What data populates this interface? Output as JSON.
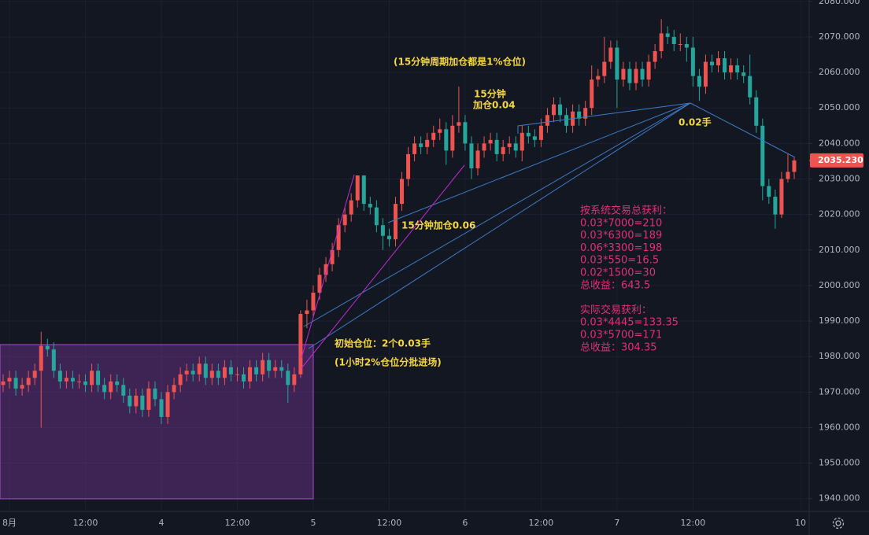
{
  "chart_data": {
    "type": "candlestick",
    "up_color": "#ef5350",
    "down_color": "#26a69a",
    "grid": true,
    "ylim": [
      1939.5,
      2080.4
    ],
    "yticks": [
      {
        "value": 1940,
        "label": "1940.000"
      },
      {
        "value": 1950,
        "label": "1950.000"
      },
      {
        "value": 1960,
        "label": "1960.000"
      },
      {
        "value": 1970,
        "label": "1970.000"
      },
      {
        "value": 1980,
        "label": "1980.000"
      },
      {
        "value": 1990,
        "label": "1990.000"
      },
      {
        "value": 2000,
        "label": "2000.000"
      },
      {
        "value": 2010,
        "label": "2010.000"
      },
      {
        "value": 2020,
        "label": "2020.000"
      },
      {
        "value": 2030,
        "label": "2030.000"
      },
      {
        "value": 2040,
        "label": "2040.000"
      },
      {
        "value": 2050,
        "label": "2050.000"
      },
      {
        "value": 2060,
        "label": "2060.000"
      },
      {
        "value": 2070,
        "label": "2070.000"
      },
      {
        "value": 2080,
        "label": "2080.000"
      }
    ],
    "last_price": {
      "value": 2035.23,
      "label": "2035.230"
    },
    "categories": [
      null,
      "8月",
      null,
      null,
      null,
      null,
      null,
      null,
      null,
      null,
      null,
      null,
      null,
      "12:00",
      null,
      null,
      null,
      null,
      null,
      null,
      null,
      null,
      null,
      null,
      null,
      "4",
      null,
      null,
      null,
      null,
      null,
      null,
      null,
      null,
      null,
      null,
      null,
      "12:00",
      null,
      null,
      null,
      null,
      null,
      null,
      null,
      null,
      null,
      null,
      null,
      "5",
      null,
      null,
      null,
      null,
      null,
      null,
      null,
      null,
      null,
      null,
      null,
      "12:00",
      null,
      null,
      null,
      null,
      null,
      null,
      null,
      null,
      null,
      null,
      null,
      "6",
      null,
      null,
      null,
      null,
      null,
      null,
      null,
      null,
      null,
      null,
      null,
      "12:00",
      null,
      null,
      null,
      null,
      null,
      null,
      null,
      null,
      null,
      null,
      null,
      "7",
      null,
      null,
      null,
      null,
      null,
      null,
      null,
      null,
      null,
      null,
      null,
      "12:00",
      null,
      null,
      null,
      null,
      null,
      null,
      null,
      null,
      null,
      null,
      null,
      null,
      null,
      null,
      null,
      null,
      "10"
    ],
    "ohlc": [
      [
        1972,
        1975,
        1970,
        1973
      ],
      [
        1973,
        1976,
        1971,
        1974
      ],
      [
        1974,
        1976,
        1969,
        1971
      ],
      [
        1971,
        1974,
        1969,
        1972
      ],
      [
        1972,
        1976,
        1970,
        1974
      ],
      [
        1974,
        1978,
        1972,
        1976
      ],
      [
        1976,
        1987,
        1960,
        1983
      ],
      [
        1983,
        1985,
        1980,
        1982
      ],
      [
        1982,
        1984,
        1974,
        1976
      ],
      [
        1976,
        1978,
        1971,
        1973
      ],
      [
        1973,
        1976,
        1971,
        1974
      ],
      [
        1974,
        1976,
        1971,
        1973
      ],
      [
        1973,
        1975,
        1971,
        1973
      ],
      [
        1973,
        1975,
        1970,
        1972
      ],
      [
        1972,
        1978,
        1970,
        1976
      ],
      [
        1976,
        1978,
        1970,
        1972
      ],
      [
        1972,
        1974,
        1968,
        1970
      ],
      [
        1970,
        1975,
        1968,
        1973
      ],
      [
        1973,
        1975,
        1970,
        1972
      ],
      [
        1972,
        1974,
        1967,
        1969
      ],
      [
        1969,
        1971,
        1964,
        1966
      ],
      [
        1966,
        1971,
        1964,
        1969
      ],
      [
        1969,
        1971,
        1963,
        1965
      ],
      [
        1965,
        1973,
        1963,
        1971
      ],
      [
        1971,
        1973,
        1966,
        1968
      ],
      [
        1968,
        1970,
        1961,
        1963
      ],
      [
        1963,
        1972,
        1961,
        1970
      ],
      [
        1970,
        1974,
        1968,
        1972
      ],
      [
        1972,
        1977,
        1970,
        1975
      ],
      [
        1975,
        1978,
        1973,
        1976
      ],
      [
        1976,
        1978,
        1973,
        1975
      ],
      [
        1975,
        1980,
        1973,
        1978
      ],
      [
        1978,
        1980,
        1972,
        1974
      ],
      [
        1974,
        1978,
        1972,
        1976
      ],
      [
        1976,
        1978,
        1972,
        1974
      ],
      [
        1974,
        1979,
        1972,
        1977
      ],
      [
        1977,
        1979,
        1973,
        1975
      ],
      [
        1975,
        1977,
        1973,
        1975
      ],
      [
        1975,
        1977,
        1971,
        1973
      ],
      [
        1973,
        1979,
        1971,
        1977
      ],
      [
        1977,
        1979,
        1973,
        1975
      ],
      [
        1975,
        1981,
        1973,
        1979
      ],
      [
        1979,
        1981,
        1974,
        1976
      ],
      [
        1976,
        1979,
        1974,
        1977
      ],
      [
        1977,
        1979,
        1974,
        1976
      ],
      [
        1976,
        1978,
        1967,
        1972
      ],
      [
        1972,
        1977,
        1970,
        1975
      ],
      [
        1975,
        1993,
        1974,
        1992
      ],
      [
        1992,
        1996,
        1988,
        1993
      ],
      [
        1993,
        2000,
        1991,
        1998
      ],
      [
        1998,
        2005,
        1996,
        2003
      ],
      [
        2003,
        2008,
        2001,
        2006
      ],
      [
        2006,
        2012,
        2004,
        2010
      ],
      [
        2010,
        2019,
        2008,
        2017
      ],
      [
        2017,
        2022,
        2015,
        2020
      ],
      [
        2020,
        2026,
        2018,
        2024
      ],
      [
        2024,
        2031,
        2022,
        2031
      ],
      [
        2031,
        2031,
        2021,
        2023
      ],
      [
        2023,
        2025,
        2020,
        2022
      ],
      [
        2022,
        2024,
        2015,
        2017
      ],
      [
        2017,
        2019,
        2010,
        2014
      ],
      [
        2014,
        2016,
        2011,
        2013
      ],
      [
        2013,
        2025,
        2011,
        2023
      ],
      [
        2023,
        2032,
        2021,
        2030
      ],
      [
        2030,
        2039,
        2028,
        2037
      ],
      [
        2037,
        2042,
        2035,
        2040
      ],
      [
        2040,
        2042,
        2037,
        2039
      ],
      [
        2039,
        2043,
        2037,
        2041
      ],
      [
        2041,
        2045,
        2039,
        2043
      ],
      [
        2043,
        2047,
        2041,
        2044
      ],
      [
        2044,
        2046,
        2034,
        2038
      ],
      [
        2038,
        2048,
        2036,
        2045
      ],
      [
        2045,
        2056,
        2043,
        2046
      ],
      [
        2046,
        2048,
        2038,
        2040
      ],
      [
        2040,
        2042,
        2030,
        2033
      ],
      [
        2033,
        2040,
        2031,
        2038
      ],
      [
        2038,
        2042,
        2036,
        2040
      ],
      [
        2040,
        2043,
        2038,
        2041
      ],
      [
        2041,
        2043,
        2035,
        2037
      ],
      [
        2037,
        2041,
        2035,
        2039
      ],
      [
        2039,
        2042,
        2037,
        2040
      ],
      [
        2040,
        2042,
        2036,
        2038
      ],
      [
        2038,
        2045,
        2035,
        2043
      ],
      [
        2043,
        2045,
        2040,
        2042
      ],
      [
        2042,
        2044,
        2039,
        2041
      ],
      [
        2041,
        2047,
        2039,
        2045
      ],
      [
        2045,
        2050,
        2043,
        2048
      ],
      [
        2048,
        2053,
        2046,
        2051
      ],
      [
        2051,
        2053,
        2046,
        2048
      ],
      [
        2048,
        2050,
        2043,
        2045
      ],
      [
        2045,
        2051,
        2043,
        2049
      ],
      [
        2049,
        2051,
        2045,
        2047
      ],
      [
        2047,
        2052,
        2045,
        2050
      ],
      [
        2050,
        2062,
        2048,
        2058
      ],
      [
        2058,
        2061,
        2056,
        2059
      ],
      [
        2059,
        2070,
        2057,
        2063
      ],
      [
        2063,
        2069,
        2061,
        2067
      ],
      [
        2067,
        2069,
        2050,
        2058
      ],
      [
        2058,
        2063,
        2056,
        2061
      ],
      [
        2061,
        2063,
        2055,
        2057
      ],
      [
        2057,
        2063,
        2055,
        2061
      ],
      [
        2061,
        2063,
        2056,
        2058
      ],
      [
        2058,
        2065,
        2056,
        2063
      ],
      [
        2063,
        2068,
        2061,
        2066
      ],
      [
        2066,
        2075,
        2064,
        2071
      ],
      [
        2071,
        2073,
        2068,
        2070
      ],
      [
        2070,
        2072,
        2066,
        2068
      ],
      [
        2068,
        2071,
        2066,
        2068
      ],
      [
        2068,
        2070,
        2063,
        2067
      ],
      [
        2067,
        2070,
        2056,
        2059
      ],
      [
        2059,
        2061,
        2052,
        2056
      ],
      [
        2056,
        2065,
        2054,
        2063
      ],
      [
        2063,
        2065,
        2060,
        2062
      ],
      [
        2062,
        2066,
        2060,
        2064
      ],
      [
        2064,
        2066,
        2058,
        2060
      ],
      [
        2060,
        2064,
        2058,
        2062
      ],
      [
        2062,
        2064,
        2058,
        2060
      ],
      [
        2060,
        2062,
        2057,
        2059
      ],
      [
        2059,
        2065,
        2051,
        2053
      ],
      [
        2053,
        2055,
        2043,
        2045
      ],
      [
        2045,
        2047,
        2024,
        2028
      ],
      [
        2028,
        2030,
        2023,
        2025
      ],
      [
        2025,
        2027,
        2016,
        2020
      ],
      [
        2020,
        2032,
        2019,
        2030
      ],
      [
        2030,
        2037,
        2029,
        2032
      ],
      [
        2032,
        2036,
        2030,
        2035.23
      ],
      null
    ],
    "annotations": [
      "(15分钟周期加仓都是1%仓位)",
      "15分钟",
      "加仓0.04",
      "15分钟加仓0.06",
      "0.02手",
      "初始仓位：2个0.03手",
      "(1小时2%仓位分批进场)"
    ],
    "notes": [
      [
        "按系统交易总获利：",
        "0.03*7000=210",
        "0.03*6300=189",
        "0.06*3300=198",
        "0.03*550=16.5",
        "0.02*1500=30",
        "总收益：643.5"
      ],
      [
        "实际交易获利：",
        "0.03*4445=133.35",
        "0.03*5700=171",
        "总收益：304.35"
      ]
    ]
  }
}
